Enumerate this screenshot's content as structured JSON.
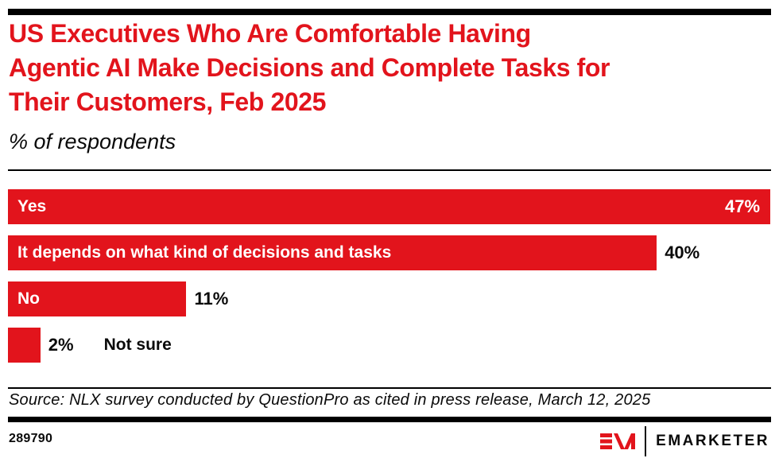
{
  "header": {
    "title_lines": [
      "US Executives Who Are Comfortable Having",
      "Agentic AI Make Decisions and Complete Tasks for",
      "Their Customers, Feb 2025"
    ],
    "subtitle": "% of respondents"
  },
  "chart_data": {
    "type": "bar",
    "orientation": "horizontal",
    "title": "US Executives Who Are Comfortable Having Agentic AI Make Decisions and Complete Tasks for Their Customers, Feb 2025",
    "subtitle": "% of respondents",
    "unit": "%",
    "categories": [
      "Yes",
      "It depends on what kind of decisions and tasks",
      "No",
      "Not sure"
    ],
    "values": [
      47,
      40,
      11,
      2
    ],
    "value_labels": [
      "47%",
      "40%",
      "11%",
      "2%"
    ],
    "xlim": [
      0,
      47
    ],
    "grid": false,
    "legend": false,
    "bar_color": "#E2141C"
  },
  "footer": {
    "source": "Source: NLX survey conducted by QuestionPro as cited in press release, March 12, 2025",
    "chart_id": "289790",
    "brand_wordmark": "EMARKETER"
  },
  "colors": {
    "accent_red": "#E2141C",
    "rule_black": "#000000",
    "text_black": "#0A0A0A",
    "bar_label_white": "#FFFFFF"
  }
}
